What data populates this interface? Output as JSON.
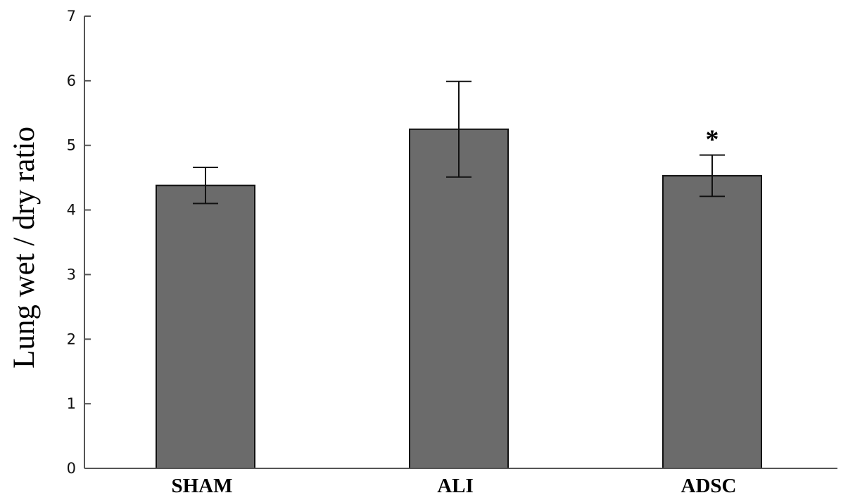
{
  "chart_data": {
    "type": "bar",
    "categories": [
      "SHAM",
      "ALI",
      "ADSC"
    ],
    "values": [
      4.38,
      5.25,
      4.53
    ],
    "errors": [
      0.28,
      0.74,
      0.32
    ],
    "annotations": [
      "",
      "",
      "*"
    ],
    "title": "",
    "xlabel": "",
    "ylabel": "Lung wet / dry ratio",
    "ylim": [
      0,
      7
    ],
    "yticks": [
      0,
      1,
      2,
      3,
      4,
      5,
      6,
      7
    ],
    "grid": false,
    "legend": "none",
    "bar_color": "#6b6b6b",
    "axis_color": "#555555"
  }
}
